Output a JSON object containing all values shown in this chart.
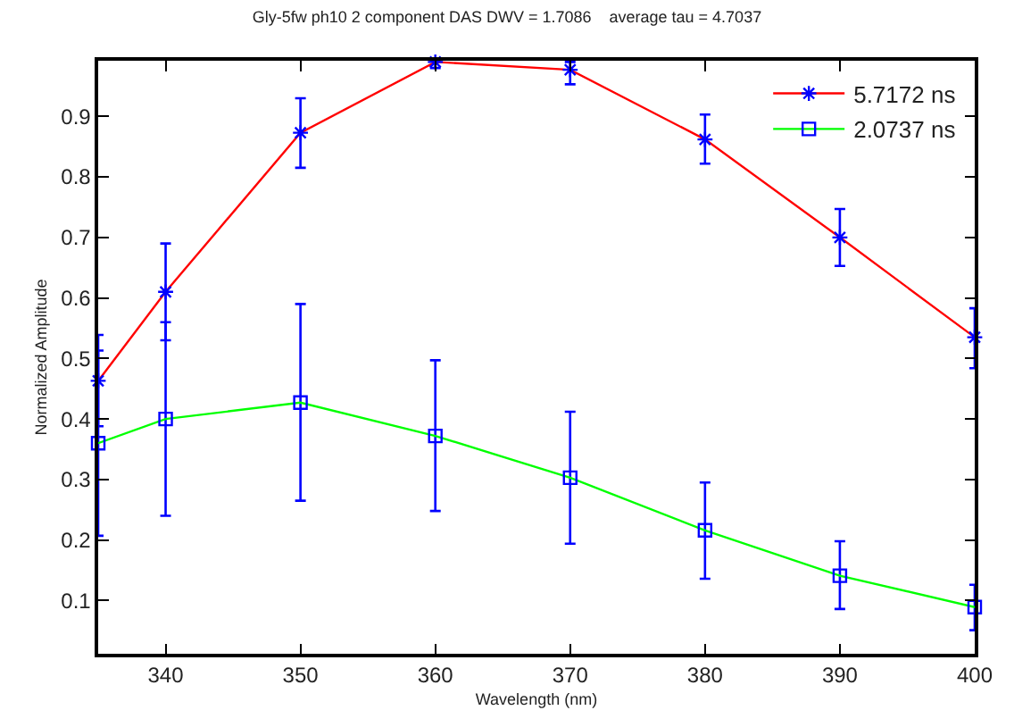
{
  "chart_data": {
    "type": "line",
    "title": "Gly-5fw ph10 2 component DAS DWV = 1.7086    average tau = 4.7037",
    "xlabel": "Wavelength (nm)",
    "ylabel": "Normalized Amplitude",
    "x": [
      335,
      340,
      350,
      360,
      370,
      380,
      390,
      400
    ],
    "series": [
      {
        "name": "5.7172 ns",
        "color": "#ff0000",
        "marker": "cross",
        "values": [
          0.463,
          0.61,
          0.873,
          0.99,
          0.977,
          0.862,
          0.7,
          0.535
        ],
        "errors": [
          [
            0.388,
            0.539
          ],
          [
            0.53,
            0.69
          ],
          [
            0.815,
            0.93
          ],
          [
            0.98,
            0.992
          ],
          [
            0.953,
            0.99
          ],
          [
            0.822,
            0.903
          ],
          [
            0.653,
            0.747
          ],
          [
            0.484,
            0.583
          ]
        ]
      },
      {
        "name": "2.0737 ns",
        "color": "#00ff00",
        "marker": "square",
        "values": [
          0.36,
          0.4,
          0.427,
          0.372,
          0.303,
          0.216,
          0.141,
          0.089
        ],
        "errors": [
          [
            0.207,
            0.513
          ],
          [
            0.24,
            0.56
          ],
          [
            0.265,
            0.59
          ],
          [
            0.248,
            0.497
          ],
          [
            0.194,
            0.412
          ],
          [
            0.136,
            0.295
          ],
          [
            0.086,
            0.198
          ],
          [
            0.051,
            0.126
          ]
        ]
      }
    ],
    "xlim": [
      335,
      400
    ],
    "xticks": [
      340,
      350,
      360,
      370,
      380,
      390,
      400
    ],
    "ylim": [
      0.012,
      0.992
    ],
    "yticks": [
      0.1,
      0.2,
      0.3,
      0.4,
      0.5,
      0.6,
      0.7,
      0.8,
      0.9
    ],
    "legend": "top right",
    "line_style": "solid"
  }
}
